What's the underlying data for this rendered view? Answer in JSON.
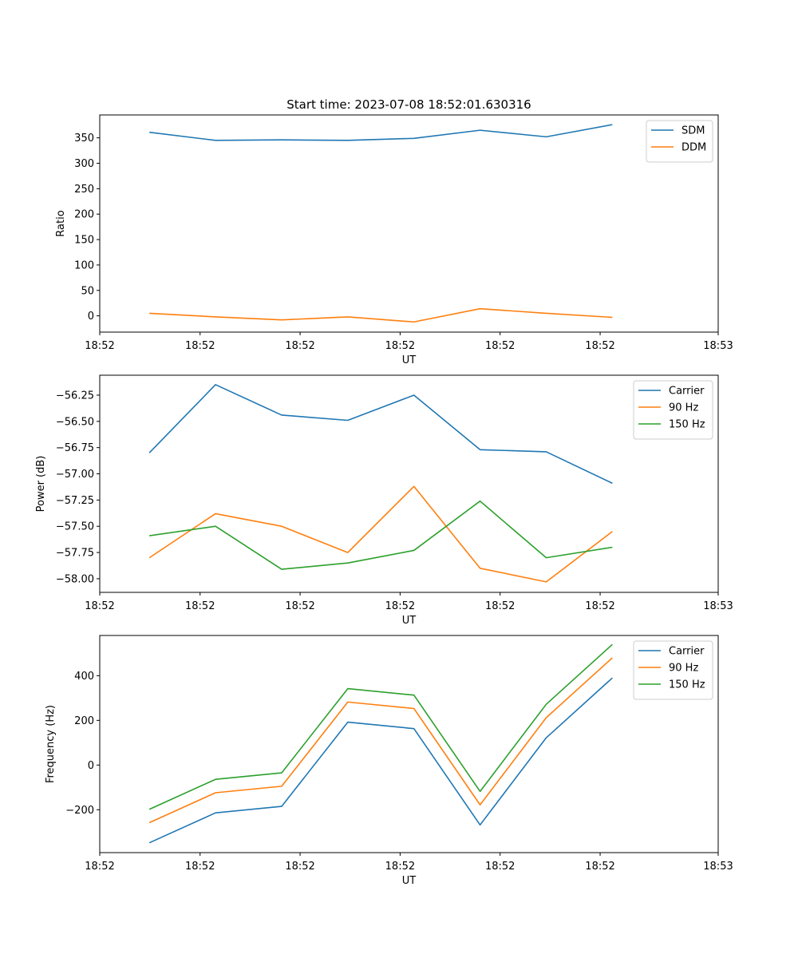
{
  "figure": {
    "title": "Start time: 2023-07-08 18:52:01.630316"
  },
  "colors": {
    "blue": "#1f77b4",
    "orange": "#ff7f0e",
    "green": "#2ca02c"
  },
  "chart_data": [
    {
      "type": "line",
      "title": "Start time: 2023-07-08 18:52:01.630316",
      "xlabel": "UT",
      "ylabel": "Ratio",
      "x_index": [
        0,
        1,
        2,
        3,
        4,
        5,
        6,
        7
      ],
      "xlim": [
        -0.75,
        8.6
      ],
      "xticks": [
        -0.75,
        0.767,
        2.279,
        3.791,
        5.303,
        6.815,
        8.6
      ],
      "xtick_labels": [
        "18:52",
        "18:52",
        "18:52",
        "18:52",
        "18:52",
        "18:52",
        "18:53"
      ],
      "ylim": [
        -32,
        395
      ],
      "yticks": [
        0,
        50,
        100,
        150,
        200,
        250,
        300,
        350
      ],
      "ytick_labels": [
        "0",
        "50",
        "100",
        "150",
        "200",
        "250",
        "300",
        "350"
      ],
      "legend": "top-right",
      "series": [
        {
          "name": "SDM",
          "color": "blue",
          "values": [
            361,
            345,
            346,
            345,
            349,
            365,
            352,
            376
          ]
        },
        {
          "name": "DDM",
          "color": "orange",
          "values": [
            5,
            -2,
            -8,
            -2,
            -12,
            14,
            5,
            -3
          ]
        }
      ]
    },
    {
      "type": "line",
      "xlabel": "UT",
      "ylabel": "Power (dB)",
      "x_index": [
        0,
        1,
        2,
        3,
        4,
        5,
        6,
        7
      ],
      "xlim": [
        -0.75,
        8.6
      ],
      "xticks": [
        -0.75,
        0.767,
        2.279,
        3.791,
        5.303,
        6.815,
        8.6
      ],
      "xtick_labels": [
        "18:52",
        "18:52",
        "18:52",
        "18:52",
        "18:52",
        "18:52",
        "18:53"
      ],
      "ylim": [
        -58.13,
        -56.06
      ],
      "yticks": [
        -58.0,
        -57.75,
        -57.5,
        -57.25,
        -57.0,
        -56.75,
        -56.5,
        -56.25
      ],
      "ytick_labels": [
        "−58.00",
        "−57.75",
        "−57.50",
        "−57.25",
        "−57.00",
        "−56.75",
        "−56.50",
        "−56.25"
      ],
      "legend": "top-right",
      "series": [
        {
          "name": "Carrier",
          "color": "blue",
          "values": [
            -56.8,
            -56.15,
            -56.44,
            -56.49,
            -56.25,
            -56.77,
            -56.79,
            -57.09
          ]
        },
        {
          "name": "90 Hz",
          "color": "orange",
          "values": [
            -57.8,
            -57.38,
            -57.5,
            -57.75,
            -57.12,
            -57.9,
            -58.03,
            -57.55
          ]
        },
        {
          "name": "150 Hz",
          "color": "green",
          "values": [
            -57.59,
            -57.5,
            -57.91,
            -57.85,
            -57.73,
            -57.26,
            -57.8,
            -57.7
          ]
        }
      ]
    },
    {
      "type": "line",
      "xlabel": "UT",
      "ylabel": "Frequency (Hz)",
      "x_index": [
        0,
        1,
        2,
        3,
        4,
        5,
        6,
        7
      ],
      "xlim": [
        -0.75,
        8.6
      ],
      "xticks": [
        -0.75,
        0.767,
        2.279,
        3.791,
        5.303,
        6.815,
        8.6
      ],
      "xtick_labels": [
        "18:52",
        "18:52",
        "18:52",
        "18:52",
        "18:52",
        "18:52",
        "18:53"
      ],
      "ylim": [
        -392,
        580
      ],
      "yticks": [
        -200,
        0,
        200,
        400
      ],
      "ytick_labels": [
        "−200",
        "0",
        "200",
        "400"
      ],
      "legend": "top-right",
      "series": [
        {
          "name": "Carrier",
          "color": "blue",
          "values": [
            -348,
            -214,
            -185,
            192,
            163,
            -268,
            122,
            390
          ]
        },
        {
          "name": "90 Hz",
          "color": "orange",
          "values": [
            -258,
            -124,
            -95,
            282,
            253,
            -178,
            212,
            480
          ]
        },
        {
          "name": "150 Hz",
          "color": "green",
          "values": [
            -198,
            -64,
            -35,
            342,
            313,
            -118,
            272,
            540
          ]
        }
      ]
    }
  ]
}
